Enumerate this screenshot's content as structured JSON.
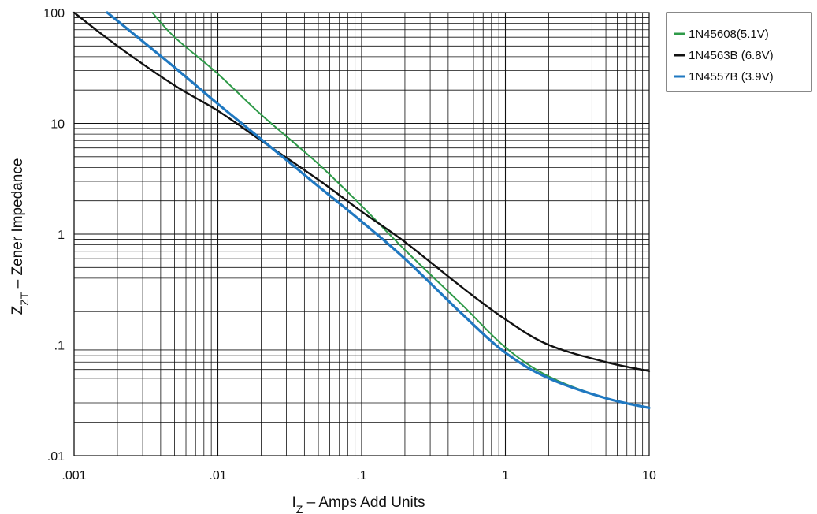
{
  "chart_data": {
    "type": "line",
    "x_scale": "log",
    "y_scale": "log",
    "xlim": [
      0.001,
      10
    ],
    "ylim": [
      0.01,
      100
    ],
    "x_ticks": [
      {
        "value": 0.001,
        "label": ".001"
      },
      {
        "value": 0.01,
        "label": ".01"
      },
      {
        "value": 0.1,
        "label": ".1"
      },
      {
        "value": 1,
        "label": "1"
      },
      {
        "value": 10,
        "label": "10"
      }
    ],
    "y_ticks": [
      {
        "value": 100,
        "label": "100"
      },
      {
        "value": 10,
        "label": "10"
      },
      {
        "value": 1,
        "label": "1"
      },
      {
        "value": 0.1,
        "label": ".1"
      },
      {
        "value": 0.01,
        "label": ".01"
      }
    ],
    "xlabel": {
      "main": "I",
      "sub": "Z",
      "rest": " – Amps Add Units"
    },
    "ylabel": {
      "main": "Z",
      "sub": "ZT",
      "rest": " – Zener Impedance"
    },
    "grid": true,
    "legend_position": "top-right, outside plot",
    "series": [
      {
        "name": "1N45608(5.1V)",
        "color": "#2e9a48",
        "x": [
          0.0035,
          0.005,
          0.01,
          0.02,
          0.05,
          0.1,
          0.2,
          0.5,
          1,
          2,
          5,
          10
        ],
        "y": [
          100,
          60,
          28,
          12,
          4.3,
          1.8,
          0.72,
          0.23,
          0.095,
          0.052,
          0.033,
          0.027
        ]
      },
      {
        "name": "1N4563B (6.8V)",
        "color": "#111111",
        "x": [
          0.001,
          0.002,
          0.005,
          0.01,
          0.02,
          0.05,
          0.1,
          0.2,
          0.5,
          1,
          2,
          5,
          10
        ],
        "y": [
          100,
          50,
          22,
          13,
          7,
          3.1,
          1.6,
          0.85,
          0.33,
          0.17,
          0.1,
          0.07,
          0.058
        ]
      },
      {
        "name": "1N4557B (3.9V)",
        "color": "#1f78c1",
        "x": [
          0.0017,
          0.003,
          0.005,
          0.01,
          0.02,
          0.05,
          0.1,
          0.2,
          0.5,
          1,
          2,
          5,
          10
        ],
        "y": [
          100,
          55,
          32,
          15,
          7.2,
          2.7,
          1.3,
          0.6,
          0.19,
          0.085,
          0.05,
          0.033,
          0.027
        ]
      }
    ]
  }
}
